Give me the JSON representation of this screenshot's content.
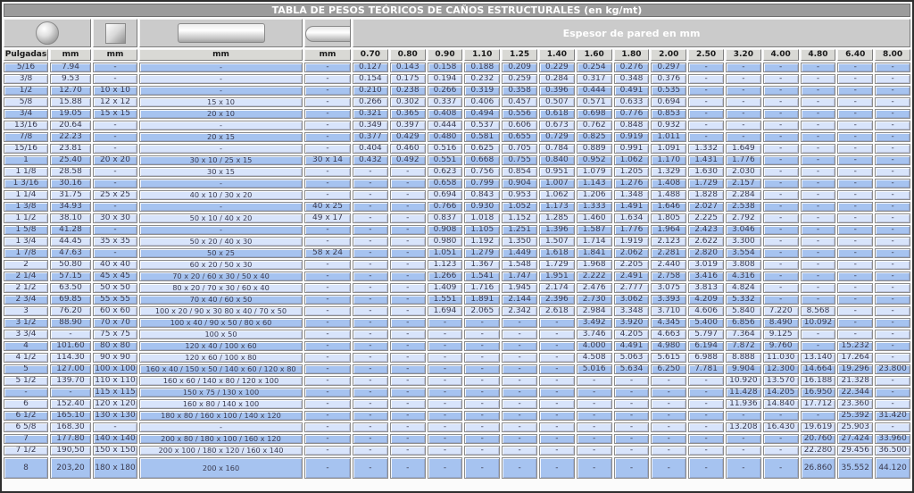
{
  "title": "TABLA DE PESOS TEÓRICOS DE CAÑOS ESTRUCTURALES (en kg/mt)",
  "header": {
    "espesor_label": "Espesor de pared en mm",
    "unit_headers": [
      "Pulgadas",
      "mm",
      "mm",
      "mm",
      "mm"
    ],
    "thickness_headers": [
      "0.70",
      "0.80",
      "0.90",
      "1.10",
      "1.25",
      "1.40",
      "1.60",
      "1.80",
      "2.00",
      "2.50",
      "3.20",
      "4.00",
      "4.80",
      "6.40",
      "8.00"
    ],
    "shape_icons": [
      "round-tube-icon",
      "square-tube-icon",
      "rectangular-tube-icon",
      "oval-tube-icon"
    ]
  },
  "colors": {
    "row_dark": "#a6c3f0",
    "row_light": "#d8e4fb",
    "header_gray": "#d9d9d5",
    "shape_gray": "#cbcbcb",
    "title_gray": "#9c9c9c",
    "text": "#3a3a4e"
  },
  "rows": [
    {
      "pulgadas": "5/16",
      "diametro_mm": "7.94",
      "cuadrado_mm": "-",
      "rectangular_mm": "-",
      "oval_mm": "-",
      "values": [
        "0.127",
        "0.143",
        "0.158",
        "0.188",
        "0.209",
        "0.229",
        "0.254",
        "0.276",
        "0.297",
        "-",
        "-",
        "-",
        "-",
        "-",
        "-"
      ]
    },
    {
      "pulgadas": "3/8",
      "diametro_mm": "9.53",
      "cuadrado_mm": "-",
      "rectangular_mm": "-",
      "oval_mm": "-",
      "values": [
        "0.154",
        "0.175",
        "0.194",
        "0.232",
        "0.259",
        "0.284",
        "0.317",
        "0.348",
        "0.376",
        "-",
        "-",
        "-",
        "-",
        "-",
        "-"
      ]
    },
    {
      "pulgadas": "1/2",
      "diametro_mm": "12.70",
      "cuadrado_mm": "10 x 10",
      "rectangular_mm": "-",
      "oval_mm": "-",
      "values": [
        "0.210",
        "0.238",
        "0.266",
        "0.319",
        "0.358",
        "0.396",
        "0.444",
        "0.491",
        "0.535",
        "-",
        "-",
        "-",
        "-",
        "-",
        "-"
      ]
    },
    {
      "pulgadas": "5/8",
      "diametro_mm": "15.88",
      "cuadrado_mm": "12 x 12",
      "rectangular_mm": "15 x 10",
      "oval_mm": "-",
      "values": [
        "0.266",
        "0.302",
        "0.337",
        "0.406",
        "0.457",
        "0.507",
        "0.571",
        "0.633",
        "0.694",
        "-",
        "-",
        "-",
        "-",
        "-",
        "-"
      ]
    },
    {
      "pulgadas": "3/4",
      "diametro_mm": "19.05",
      "cuadrado_mm": "15 x 15",
      "rectangular_mm": "20 x 10",
      "oval_mm": "-",
      "values": [
        "0.321",
        "0.365",
        "0.408",
        "0.494",
        "0.556",
        "0.618",
        "0.698",
        "0.776",
        "0.853",
        "-",
        "-",
        "-",
        "-",
        "-",
        "-"
      ]
    },
    {
      "pulgadas": "13/16",
      "diametro_mm": "20.64",
      "cuadrado_mm": "-",
      "rectangular_mm": "-",
      "oval_mm": "-",
      "values": [
        "0.349",
        "0.397",
        "0.444",
        "0.537",
        "0.606",
        "0.673",
        "0.762",
        "0.848",
        "0.932",
        "-",
        "-",
        "-",
        "-",
        "-",
        "-"
      ]
    },
    {
      "pulgadas": "7/8",
      "diametro_mm": "22.23",
      "cuadrado_mm": "-",
      "rectangular_mm": "20 x 15",
      "oval_mm": "-",
      "values": [
        "0.377",
        "0.429",
        "0.480",
        "0.581",
        "0.655",
        "0.729",
        "0.825",
        "0.919",
        "1.011",
        "-",
        "-",
        "-",
        "-",
        "-",
        "-"
      ]
    },
    {
      "pulgadas": "15/16",
      "diametro_mm": "23.81",
      "cuadrado_mm": "-",
      "rectangular_mm": "-",
      "oval_mm": "-",
      "values": [
        "0.404",
        "0.460",
        "0.516",
        "0.625",
        "0.705",
        "0.784",
        "0.889",
        "0.991",
        "1.091",
        "1.332",
        "1.649",
        "-",
        "-",
        "-",
        "-"
      ]
    },
    {
      "pulgadas": "1",
      "diametro_mm": "25.40",
      "cuadrado_mm": "20 x 20",
      "rectangular_mm": "30 x 10 / 25 x 15",
      "oval_mm": "30 x 14",
      "values": [
        "0.432",
        "0.492",
        "0.551",
        "0.668",
        "0.755",
        "0.840",
        "0.952",
        "1.062",
        "1.170",
        "1.431",
        "1.776",
        "-",
        "-",
        "-",
        "-"
      ]
    },
    {
      "pulgadas": "1 1/8",
      "diametro_mm": "28.58",
      "cuadrado_mm": "-",
      "rectangular_mm": "30 x 15",
      "oval_mm": "-",
      "values": [
        "-",
        "-",
        "0.623",
        "0.756",
        "0.854",
        "0.951",
        "1.079",
        "1.205",
        "1.329",
        "1.630",
        "2.030",
        "-",
        "-",
        "-",
        "-"
      ]
    },
    {
      "pulgadas": "1 3/16",
      "diametro_mm": "30.16",
      "cuadrado_mm": "-",
      "rectangular_mm": "-",
      "oval_mm": "-",
      "values": [
        "-",
        "-",
        "0.658",
        "0.799",
        "0.904",
        "1.007",
        "1.143",
        "1.276",
        "1.408",
        "1.729",
        "2.157",
        "-",
        "-",
        "-",
        "-"
      ]
    },
    {
      "pulgadas": "1 1/4",
      "diametro_mm": "31.75",
      "cuadrado_mm": "25 x 25",
      "rectangular_mm": "40 x 10 / 30 x 20",
      "oval_mm": "-",
      "values": [
        "-",
        "-",
        "0.694",
        "0.843",
        "0.953",
        "1.062",
        "1.206",
        "1.348",
        "1.488",
        "1.828",
        "2.284",
        "-",
        "-",
        "-",
        "-"
      ]
    },
    {
      "pulgadas": "1 3/8",
      "diametro_mm": "34.93",
      "cuadrado_mm": "-",
      "rectangular_mm": "-",
      "oval_mm": "40 x 25",
      "values": [
        "-",
        "-",
        "0.766",
        "0.930",
        "1.052",
        "1.173",
        "1.333",
        "1.491",
        "1.646",
        "2.027",
        "2.538",
        "-",
        "-",
        "-",
        "-"
      ]
    },
    {
      "pulgadas": "1 1/2",
      "diametro_mm": "38.10",
      "cuadrado_mm": "30 x 30",
      "rectangular_mm": "50 x 10 / 40 x 20",
      "oval_mm": "49 x 17",
      "values": [
        "-",
        "-",
        "0.837",
        "1.018",
        "1.152",
        "1.285",
        "1.460",
        "1.634",
        "1.805",
        "2.225",
        "2.792",
        "-",
        "-",
        "-",
        "-"
      ]
    },
    {
      "pulgadas": "1 5/8",
      "diametro_mm": "41.28",
      "cuadrado_mm": "-",
      "rectangular_mm": "-",
      "oval_mm": "-",
      "values": [
        "-",
        "-",
        "0.908",
        "1.105",
        "1.251",
        "1.396",
        "1.587",
        "1.776",
        "1.964",
        "2.423",
        "3.046",
        "-",
        "-",
        "-",
        "-"
      ]
    },
    {
      "pulgadas": "1 3/4",
      "diametro_mm": "44.45",
      "cuadrado_mm": "35 x 35",
      "rectangular_mm": "50 x 20 / 40 x 30",
      "oval_mm": "-",
      "values": [
        "-",
        "-",
        "0.980",
        "1.192",
        "1.350",
        "1.507",
        "1.714",
        "1.919",
        "2.123",
        "2.622",
        "3.300",
        "-",
        "-",
        "-",
        "-"
      ]
    },
    {
      "pulgadas": "1 7/8",
      "diametro_mm": "47.63",
      "cuadrado_mm": "-",
      "rectangular_mm": "50 x 25",
      "oval_mm": "58 x 24",
      "values": [
        "-",
        "-",
        "1.051",
        "1.279",
        "1.449",
        "1.618",
        "1.841",
        "2.062",
        "2.281",
        "2.820",
        "3.554",
        "-",
        "-",
        "-",
        "-"
      ]
    },
    {
      "pulgadas": "2",
      "diametro_mm": "50.80",
      "cuadrado_mm": "40 x 40",
      "rectangular_mm": "60 x 20 / 50 x 30",
      "oval_mm": "-",
      "values": [
        "-",
        "-",
        "1.123",
        "1.367",
        "1.548",
        "1.729",
        "1.968",
        "2.205",
        "2.440",
        "3.019",
        "3.808",
        "-",
        "-",
        "-",
        "-"
      ]
    },
    {
      "pulgadas": "2 1/4",
      "diametro_mm": "57.15",
      "cuadrado_mm": "45 x 45",
      "rectangular_mm": "70 x 20 / 60 x 30 / 50 x 40",
      "oval_mm": "-",
      "values": [
        "-",
        "-",
        "1.266",
        "1.541",
        "1.747",
        "1.951",
        "2.222",
        "2.491",
        "2.758",
        "3.416",
        "4.316",
        "-",
        "-",
        "-",
        "-"
      ]
    },
    {
      "pulgadas": "2 1/2",
      "diametro_mm": "63.50",
      "cuadrado_mm": "50 x 50",
      "rectangular_mm": "80 x 20 / 70 x 30 / 60 x 40",
      "oval_mm": "-",
      "values": [
        "-",
        "-",
        "1.409",
        "1.716",
        "1.945",
        "2.174",
        "2.476",
        "2.777",
        "3.075",
        "3.813",
        "4.824",
        "-",
        "-",
        "-",
        "-"
      ]
    },
    {
      "pulgadas": "2 3/4",
      "diametro_mm": "69.85",
      "cuadrado_mm": "55 x 55",
      "rectangular_mm": "70 x 40 / 60 x 50",
      "oval_mm": "-",
      "values": [
        "-",
        "-",
        "1.551",
        "1.891",
        "2.144",
        "2.396",
        "2.730",
        "3.062",
        "3.393",
        "4.209",
        "5.332",
        "-",
        "-",
        "-",
        "-"
      ]
    },
    {
      "pulgadas": "3",
      "diametro_mm": "76.20",
      "cuadrado_mm": "60 x 60",
      "rectangular_mm": "100 x 20 / 90 x 30 80 x 40 / 70 x 50",
      "oval_mm": "-",
      "values": [
        "-",
        "-",
        "1.694",
        "2.065",
        "2.342",
        "2.618",
        "2.984",
        "3.348",
        "3.710",
        "4.606",
        "5.840",
        "7.220",
        "8.568",
        "-",
        "-"
      ]
    },
    {
      "pulgadas": "3 1/2",
      "diametro_mm": "88.90",
      "cuadrado_mm": "70 x 70",
      "rectangular_mm": "100 x 40 / 90 x 50 / 80 x 60",
      "oval_mm": "-",
      "values": [
        "-",
        "-",
        "-",
        "-",
        "-",
        "-",
        "3.492",
        "3.920",
        "4.345",
        "5.400",
        "6.856",
        "8.490",
        "10.092",
        "-",
        "-"
      ]
    },
    {
      "pulgadas": "3 3/4",
      "diametro_mm": "-",
      "cuadrado_mm": "75 x 75",
      "rectangular_mm": "100 x 50",
      "oval_mm": "-",
      "values": [
        "-",
        "-",
        "-",
        "-",
        "-",
        "-",
        "3.746",
        "4.205",
        "4.663",
        "5.797",
        "7.364",
        "9.125",
        "-",
        "-",
        "-"
      ]
    },
    {
      "pulgadas": "4",
      "diametro_mm": "101.60",
      "cuadrado_mm": "80 x 80",
      "rectangular_mm": "120 x 40 / 100 x 60",
      "oval_mm": "-",
      "values": [
        "-",
        "-",
        "-",
        "-",
        "-",
        "-",
        "4.000",
        "4.491",
        "4.980",
        "6.194",
        "7.872",
        "9.760",
        "-",
        "15.232",
        "-"
      ]
    },
    {
      "pulgadas": "4 1/2",
      "diametro_mm": "114.30",
      "cuadrado_mm": "90 x 90",
      "rectangular_mm": "120 x 60 / 100 x 80",
      "oval_mm": "-",
      "values": [
        "-",
        "-",
        "-",
        "-",
        "-",
        "-",
        "4.508",
        "5.063",
        "5.615",
        "6.988",
        "8.888",
        "11.030",
        "13.140",
        "17.264",
        "-"
      ]
    },
    {
      "pulgadas": "5",
      "diametro_mm": "127.00",
      "cuadrado_mm": "100 x 100",
      "rectangular_mm": "160 x 40 / 150 x 50 / 140 x 60 / 120 x 80",
      "oval_mm": "-",
      "values": [
        "-",
        "-",
        "-",
        "-",
        "-",
        "-",
        "5.016",
        "5.634",
        "6.250",
        "7.781",
        "9.904",
        "12.300",
        "14.664",
        "19.296",
        "23.800"
      ]
    },
    {
      "pulgadas": "5 1/2",
      "diametro_mm": "139.70",
      "cuadrado_mm": "110 x 110",
      "rectangular_mm": "160 x 60 / 140 x 80 / 120 x 100",
      "oval_mm": "-",
      "values": [
        "-",
        "-",
        "-",
        "-",
        "-",
        "-",
        "-",
        "-",
        "-",
        "-",
        "10.920",
        "13.570",
        "16.188",
        "21.328",
        "-"
      ]
    },
    {
      "pulgadas": "-",
      "diametro_mm": "-",
      "cuadrado_mm": "115 x 115",
      "rectangular_mm": "150 x 75 / 130 x 100",
      "oval_mm": "-",
      "values": [
        "-",
        "-",
        "-",
        "-",
        "-",
        "-",
        "-",
        "-",
        "-",
        "-",
        "11.428",
        "14.205",
        "16.950",
        "22.344",
        "-"
      ]
    },
    {
      "pulgadas": "6",
      "diametro_mm": "152.40",
      "cuadrado_mm": "120 x 120",
      "rectangular_mm": "160 x 80 / 140 x 100",
      "oval_mm": "-",
      "values": [
        "-",
        "-",
        "-",
        "-",
        "-",
        "-",
        "-",
        "-",
        "-",
        "-",
        "11.936",
        "14.840",
        "17.712",
        "23.360",
        "-"
      ]
    },
    {
      "pulgadas": "6 1/2",
      "diametro_mm": "165.10",
      "cuadrado_mm": "130 x 130",
      "rectangular_mm": "180 x 80 / 160 x 100 / 140 x 120",
      "oval_mm": "-",
      "values": [
        "-",
        "-",
        "-",
        "-",
        "-",
        "-",
        "-",
        "-",
        "-",
        "-",
        "-",
        "-",
        "-",
        "25.392",
        "31.420"
      ]
    },
    {
      "pulgadas": "6 5/8",
      "diametro_mm": "168.30",
      "cuadrado_mm": "-",
      "rectangular_mm": "-",
      "oval_mm": "-",
      "values": [
        "-",
        "-",
        "-",
        "-",
        "-",
        "-",
        "-",
        "-",
        "-",
        "-",
        "13.208",
        "16.430",
        "19.619",
        "25.903",
        "-"
      ]
    },
    {
      "pulgadas": "7",
      "diametro_mm": "177.80",
      "cuadrado_mm": "140 x 140",
      "rectangular_mm": "200 x 80 / 180 x 100 / 160 x 120",
      "oval_mm": "-",
      "values": [
        "-",
        "-",
        "-",
        "-",
        "-",
        "-",
        "-",
        "-",
        "-",
        "-",
        "-",
        "-",
        "20.760",
        "27.424",
        "33.960"
      ]
    },
    {
      "pulgadas": "7 1/2",
      "diametro_mm": "190,50",
      "cuadrado_mm": "150 x 150",
      "rectangular_mm": "200 x 100 / 180 x 120 / 160 x 140",
      "oval_mm": "-",
      "values": [
        "-",
        "-",
        "-",
        "-",
        "-",
        "-",
        "-",
        "-",
        "-",
        "-",
        "-",
        "-",
        "22.280",
        "29.456",
        "36.500"
      ]
    },
    {
      "pulgadas": "8",
      "diametro_mm": "203,20",
      "cuadrado_mm": "180 x 180",
      "rectangular_mm": "200 x 160",
      "oval_mm": "-",
      "values": [
        "-",
        "-",
        "-",
        "-",
        "-",
        "-",
        "-",
        "-",
        "-",
        "-",
        "-",
        "-",
        "26.860",
        "35.552",
        "44.120"
      ]
    }
  ]
}
